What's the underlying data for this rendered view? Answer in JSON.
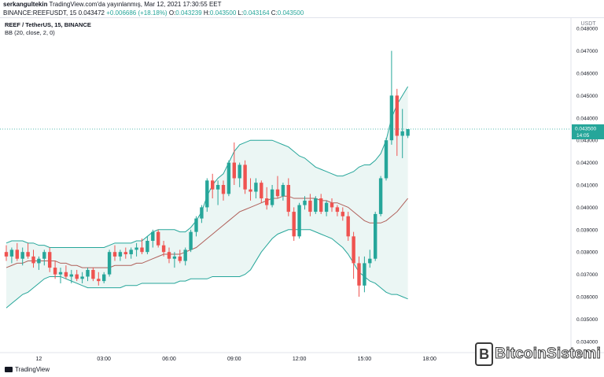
{
  "header": {
    "line1_author": "serkangultekin",
    "line1_rest": " TradingView.com'da yayınlanmış, Mar 12, 2021 17:30:55 EET",
    "symbol_id": "BINANCE:REEFUSDT, 15",
    "price": "0.043472",
    "change": "+0.006686 (+18.18%)",
    "o_label": "O:",
    "o_value": "0.043239",
    "h_label": "H:",
    "h_value": "0.043500",
    "l_label": "L:",
    "l_value": "0.043164",
    "c_label": "C:",
    "c_value": "0.043500"
  },
  "legend": {
    "symbol": "REEF / TetherUS, 15, BINANCE",
    "indicator": "BB (20, close, 2, 0)"
  },
  "footer": {
    "brand": "TradingView"
  },
  "watermark": {
    "badge": "B",
    "text": "BitcoinSistemi"
  },
  "colors": {
    "up": "#26a69a",
    "down": "#ef5350",
    "bb_band": "#26a69a",
    "bb_fill": "#e6f4f1",
    "bb_basis": "#b0605a",
    "last_price": "#26a69a"
  },
  "chart_data": {
    "type": "candlestick",
    "currency_label": "USDT",
    "ylim": [
      0.0335,
      0.0485
    ],
    "y_ticks": [
      "0.048000",
      "0.047000",
      "0.046000",
      "0.045000",
      "0.044000",
      "0.043000",
      "0.042000",
      "0.041000",
      "0.040000",
      "0.039000",
      "0.038000",
      "0.037000",
      "0.036000",
      "0.035000",
      "0.034000"
    ],
    "x_ticks": [
      {
        "label": "12",
        "bar": 6
      },
      {
        "label": "03:00",
        "bar": 18
      },
      {
        "label": "06:00",
        "bar": 30
      },
      {
        "label": "09:00",
        "bar": 42
      },
      {
        "label": "12:00",
        "bar": 54
      },
      {
        "label": "15:00",
        "bar": 66
      },
      {
        "label": "18:00",
        "bar": 78
      }
    ],
    "last_price_label": "0.043500",
    "countdown_label": "14:05",
    "candles": [
      {
        "o": 0.038,
        "h": 0.0383,
        "l": 0.0376,
        "c": 0.0378
      },
      {
        "o": 0.0378,
        "h": 0.0382,
        "l": 0.0375,
        "c": 0.0381
      },
      {
        "o": 0.0381,
        "h": 0.0384,
        "l": 0.0376,
        "c": 0.0377
      },
      {
        "o": 0.0377,
        "h": 0.0382,
        "l": 0.0374,
        "c": 0.038
      },
      {
        "o": 0.038,
        "h": 0.0384,
        "l": 0.0377,
        "c": 0.0378
      },
      {
        "o": 0.0378,
        "h": 0.0381,
        "l": 0.0373,
        "c": 0.0375
      },
      {
        "o": 0.0375,
        "h": 0.0378,
        "l": 0.0372,
        "c": 0.0377
      },
      {
        "o": 0.0377,
        "h": 0.0381,
        "l": 0.0374,
        "c": 0.038
      },
      {
        "o": 0.038,
        "h": 0.0382,
        "l": 0.0371,
        "c": 0.0373
      },
      {
        "o": 0.0373,
        "h": 0.0376,
        "l": 0.0368,
        "c": 0.037
      },
      {
        "o": 0.037,
        "h": 0.0373,
        "l": 0.0366,
        "c": 0.0371
      },
      {
        "o": 0.0371,
        "h": 0.0374,
        "l": 0.0368,
        "c": 0.0369
      },
      {
        "o": 0.0369,
        "h": 0.0372,
        "l": 0.0366,
        "c": 0.037
      },
      {
        "o": 0.037,
        "h": 0.0372,
        "l": 0.0367,
        "c": 0.0368
      },
      {
        "o": 0.0368,
        "h": 0.0371,
        "l": 0.0366,
        "c": 0.0369
      },
      {
        "o": 0.0369,
        "h": 0.0373,
        "l": 0.0367,
        "c": 0.0372
      },
      {
        "o": 0.0372,
        "h": 0.0373,
        "l": 0.0367,
        "c": 0.0368
      },
      {
        "o": 0.0368,
        "h": 0.0371,
        "l": 0.0365,
        "c": 0.0367
      },
      {
        "o": 0.0367,
        "h": 0.0371,
        "l": 0.0366,
        "c": 0.037
      },
      {
        "o": 0.037,
        "h": 0.0381,
        "l": 0.0369,
        "c": 0.038
      },
      {
        "o": 0.038,
        "h": 0.0383,
        "l": 0.0376,
        "c": 0.0378
      },
      {
        "o": 0.0378,
        "h": 0.0381,
        "l": 0.0376,
        "c": 0.038
      },
      {
        "o": 0.038,
        "h": 0.0382,
        "l": 0.0377,
        "c": 0.0379
      },
      {
        "o": 0.0379,
        "h": 0.0382,
        "l": 0.0377,
        "c": 0.0381
      },
      {
        "o": 0.0381,
        "h": 0.0384,
        "l": 0.0378,
        "c": 0.0382
      },
      {
        "o": 0.0382,
        "h": 0.0386,
        "l": 0.0379,
        "c": 0.038
      },
      {
        "o": 0.038,
        "h": 0.0387,
        "l": 0.0379,
        "c": 0.0385
      },
      {
        "o": 0.0385,
        "h": 0.039,
        "l": 0.0382,
        "c": 0.0389
      },
      {
        "o": 0.0389,
        "h": 0.039,
        "l": 0.0382,
        "c": 0.0383
      },
      {
        "o": 0.0383,
        "h": 0.0385,
        "l": 0.0378,
        "c": 0.038
      },
      {
        "o": 0.038,
        "h": 0.0382,
        "l": 0.0375,
        "c": 0.0377
      },
      {
        "o": 0.0377,
        "h": 0.038,
        "l": 0.0373,
        "c": 0.0378
      },
      {
        "o": 0.0378,
        "h": 0.0381,
        "l": 0.0375,
        "c": 0.0376
      },
      {
        "o": 0.0376,
        "h": 0.0382,
        "l": 0.0374,
        "c": 0.0381
      },
      {
        "o": 0.0381,
        "h": 0.039,
        "l": 0.038,
        "c": 0.0389
      },
      {
        "o": 0.0389,
        "h": 0.0396,
        "l": 0.0387,
        "c": 0.0395
      },
      {
        "o": 0.0395,
        "h": 0.0401,
        "l": 0.0393,
        "c": 0.04
      },
      {
        "o": 0.04,
        "h": 0.0413,
        "l": 0.0398,
        "c": 0.0412
      },
      {
        "o": 0.0412,
        "h": 0.0415,
        "l": 0.0404,
        "c": 0.0408
      },
      {
        "o": 0.0408,
        "h": 0.0412,
        "l": 0.0401,
        "c": 0.041
      },
      {
        "o": 0.041,
        "h": 0.0412,
        "l": 0.0403,
        "c": 0.0406
      },
      {
        "o": 0.0406,
        "h": 0.0421,
        "l": 0.0405,
        "c": 0.042
      },
      {
        "o": 0.042,
        "h": 0.0429,
        "l": 0.041,
        "c": 0.0413
      },
      {
        "o": 0.0413,
        "h": 0.042,
        "l": 0.0409,
        "c": 0.0419
      },
      {
        "o": 0.0419,
        "h": 0.0421,
        "l": 0.0406,
        "c": 0.0408
      },
      {
        "o": 0.0408,
        "h": 0.0413,
        "l": 0.0403,
        "c": 0.0407
      },
      {
        "o": 0.0407,
        "h": 0.0413,
        "l": 0.0404,
        "c": 0.0411
      },
      {
        "o": 0.0411,
        "h": 0.0412,
        "l": 0.0402,
        "c": 0.0404
      },
      {
        "o": 0.0404,
        "h": 0.0409,
        "l": 0.0399,
        "c": 0.0401
      },
      {
        "o": 0.0401,
        "h": 0.041,
        "l": 0.04,
        "c": 0.0408
      },
      {
        "o": 0.0408,
        "h": 0.0414,
        "l": 0.0404,
        "c": 0.0405
      },
      {
        "o": 0.0405,
        "h": 0.0411,
        "l": 0.0403,
        "c": 0.041
      },
      {
        "o": 0.041,
        "h": 0.0413,
        "l": 0.0396,
        "c": 0.0398
      },
      {
        "o": 0.0398,
        "h": 0.04,
        "l": 0.0385,
        "c": 0.0387
      },
      {
        "o": 0.0387,
        "h": 0.0402,
        "l": 0.0386,
        "c": 0.0401
      },
      {
        "o": 0.0401,
        "h": 0.0405,
        "l": 0.0399,
        "c": 0.0403
      },
      {
        "o": 0.0403,
        "h": 0.0406,
        "l": 0.0396,
        "c": 0.0398
      },
      {
        "o": 0.0398,
        "h": 0.0405,
        "l": 0.0397,
        "c": 0.0404
      },
      {
        "o": 0.0404,
        "h": 0.0406,
        "l": 0.0397,
        "c": 0.0398
      },
      {
        "o": 0.0398,
        "h": 0.0403,
        "l": 0.0396,
        "c": 0.0402
      },
      {
        "o": 0.0402,
        "h": 0.0404,
        "l": 0.0398,
        "c": 0.04
      },
      {
        "o": 0.04,
        "h": 0.0401,
        "l": 0.0396,
        "c": 0.0398
      },
      {
        "o": 0.0398,
        "h": 0.04,
        "l": 0.0394,
        "c": 0.0396
      },
      {
        "o": 0.0396,
        "h": 0.0398,
        "l": 0.0385,
        "c": 0.0387
      },
      {
        "o": 0.0387,
        "h": 0.0389,
        "l": 0.0368,
        "c": 0.0375
      },
      {
        "o": 0.0375,
        "h": 0.0378,
        "l": 0.036,
        "c": 0.0365
      },
      {
        "o": 0.0365,
        "h": 0.0378,
        "l": 0.0362,
        "c": 0.0375
      },
      {
        "o": 0.0375,
        "h": 0.0381,
        "l": 0.0373,
        "c": 0.0377
      },
      {
        "o": 0.0377,
        "h": 0.0398,
        "l": 0.0376,
        "c": 0.0397
      },
      {
        "o": 0.0397,
        "h": 0.0414,
        "l": 0.0396,
        "c": 0.0413
      },
      {
        "o": 0.0413,
        "h": 0.0431,
        "l": 0.0412,
        "c": 0.043
      },
      {
        "o": 0.043,
        "h": 0.047,
        "l": 0.0428,
        "c": 0.045
      },
      {
        "o": 0.045,
        "h": 0.0453,
        "l": 0.0423,
        "c": 0.0432
      },
      {
        "o": 0.0432,
        "h": 0.0444,
        "l": 0.0422,
        "c": 0.0434
      },
      {
        "o": 0.0432,
        "h": 0.0435,
        "l": 0.0431,
        "c": 0.0435
      }
    ],
    "bb_upper": [
      0.0384,
      0.0385,
      0.0385,
      0.0385,
      0.0384,
      0.0384,
      0.0383,
      0.0383,
      0.0382,
      0.0382,
      0.0382,
      0.0382,
      0.0382,
      0.0382,
      0.0382,
      0.0382,
      0.0382,
      0.0382,
      0.0382,
      0.0383,
      0.0384,
      0.0384,
      0.0384,
      0.0384,
      0.0385,
      0.0385,
      0.0387,
      0.0389,
      0.039,
      0.039,
      0.039,
      0.039,
      0.0389,
      0.0389,
      0.0391,
      0.0394,
      0.0398,
      0.0405,
      0.041,
      0.0413,
      0.0415,
      0.042,
      0.0425,
      0.0428,
      0.0429,
      0.043,
      0.043,
      0.043,
      0.043,
      0.043,
      0.0429,
      0.0428,
      0.0427,
      0.0425,
      0.0423,
      0.0422,
      0.042,
      0.0418,
      0.0417,
      0.0416,
      0.0415,
      0.0414,
      0.0414,
      0.0415,
      0.0416,
      0.0418,
      0.0419,
      0.0419,
      0.0421,
      0.0424,
      0.043,
      0.044,
      0.0446,
      0.045,
      0.0454
    ],
    "bb_basis": [
      0.0373,
      0.0374,
      0.0375,
      0.0375,
      0.0376,
      0.0376,
      0.0376,
      0.0376,
      0.0376,
      0.0376,
      0.0375,
      0.0375,
      0.0374,
      0.0374,
      0.0373,
      0.0373,
      0.0373,
      0.0373,
      0.0373,
      0.0373,
      0.0374,
      0.0374,
      0.0374,
      0.0374,
      0.0375,
      0.0375,
      0.0376,
      0.0377,
      0.0378,
      0.0379,
      0.0379,
      0.0379,
      0.0379,
      0.038,
      0.0381,
      0.0382,
      0.0384,
      0.0386,
      0.0388,
      0.039,
      0.0392,
      0.0394,
      0.0396,
      0.0398,
      0.0399,
      0.04,
      0.0401,
      0.0402,
      0.0403,
      0.0404,
      0.0404,
      0.0405,
      0.0405,
      0.0404,
      0.0404,
      0.0404,
      0.0404,
      0.0404,
      0.0403,
      0.0403,
      0.0402,
      0.0402,
      0.0401,
      0.04,
      0.0398,
      0.0396,
      0.0394,
      0.0393,
      0.0393,
      0.0393,
      0.0394,
      0.0396,
      0.0398,
      0.0401,
      0.0404
    ],
    "bb_lower": [
      0.0355,
      0.0357,
      0.0359,
      0.0361,
      0.0362,
      0.0364,
      0.0366,
      0.0368,
      0.0369,
      0.0369,
      0.0369,
      0.0368,
      0.0367,
      0.0366,
      0.0365,
      0.0364,
      0.0364,
      0.0364,
      0.0364,
      0.0364,
      0.0364,
      0.0364,
      0.0365,
      0.0365,
      0.0365,
      0.0366,
      0.0366,
      0.0366,
      0.0366,
      0.0366,
      0.0366,
      0.0366,
      0.0367,
      0.0367,
      0.0368,
      0.0368,
      0.0368,
      0.0368,
      0.0369,
      0.0369,
      0.0369,
      0.0369,
      0.0369,
      0.0369,
      0.037,
      0.0372,
      0.0376,
      0.038,
      0.0383,
      0.0386,
      0.0388,
      0.0389,
      0.039,
      0.039,
      0.039,
      0.039,
      0.039,
      0.0389,
      0.0388,
      0.0387,
      0.0386,
      0.0384,
      0.0382,
      0.0379,
      0.0375,
      0.0371,
      0.0369,
      0.0367,
      0.0366,
      0.0364,
      0.0362,
      0.0361,
      0.0361,
      0.036,
      0.0359
    ]
  }
}
